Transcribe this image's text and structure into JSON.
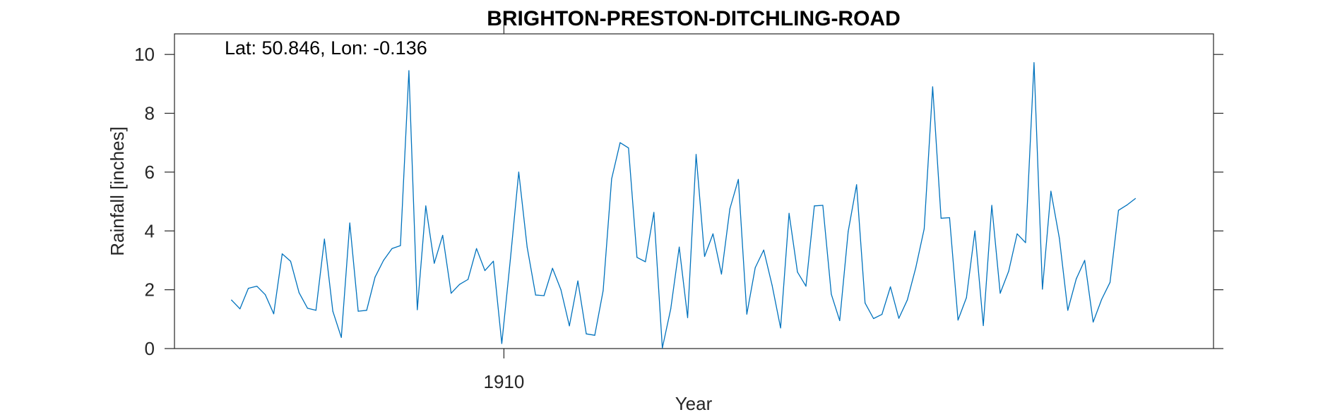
{
  "chart_data": {
    "type": "line",
    "title": "BRIGHTON-PRESTON-DITCHLING-ROAD",
    "xlabel": "Year",
    "ylabel": "Rainfall [inches]",
    "annotation": "Lat: 50.846, Lon: -0.136",
    "xlim": [
      1903.5,
      1924
    ],
    "ylim": [
      0,
      10.7
    ],
    "x_ticks": [
      {
        "value": 1910,
        "label": "1910"
      }
    ],
    "y_ticks": [
      {
        "value": 0,
        "label": "0"
      },
      {
        "value": 2,
        "label": "2"
      },
      {
        "value": 4,
        "label": "4"
      },
      {
        "value": 6,
        "label": "6"
      },
      {
        "value": 8,
        "label": "8"
      },
      {
        "value": 10,
        "label": "10"
      }
    ],
    "grid": false,
    "line_color": "#0072BD",
    "series": [
      {
        "x_start": 1904.625,
        "x_step": 0.16667,
        "values": [
          1.65,
          1.35,
          2.05,
          2.12,
          1.83,
          1.18,
          3.22,
          2.97,
          1.9,
          1.37,
          1.3,
          3.72,
          1.27,
          0.38,
          4.27,
          1.27,
          1.3,
          2.43,
          3.0,
          3.4,
          3.5,
          9.45,
          1.32,
          4.85,
          2.9,
          3.85,
          1.88,
          2.18,
          2.35,
          3.4,
          2.65,
          2.97,
          0.17,
          3.0,
          6.0,
          3.45,
          1.82,
          1.8,
          2.73,
          2.0,
          0.77,
          2.3,
          0.5,
          0.45,
          1.97,
          5.77,
          7.0,
          6.82,
          3.1,
          2.95,
          4.63,
          0.02,
          1.35,
          3.45,
          1.05,
          6.6,
          3.13,
          3.9,
          2.53,
          4.75,
          5.75,
          1.17,
          2.75,
          3.35,
          2.15,
          0.7,
          4.6,
          2.6,
          2.12,
          4.85,
          4.87,
          1.85,
          0.95,
          3.98,
          5.57,
          1.55,
          1.02,
          1.16,
          2.1,
          1.03,
          1.65,
          2.75,
          4.07,
          8.9,
          4.43,
          4.45,
          0.97,
          1.73,
          4.0,
          0.78,
          4.87,
          1.88,
          2.63,
          3.9,
          3.6,
          9.72,
          2.02,
          5.35,
          3.75,
          1.3,
          2.37,
          3.0,
          0.9,
          1.67,
          2.25,
          4.7,
          4.88,
          5.1
        ]
      }
    ]
  }
}
